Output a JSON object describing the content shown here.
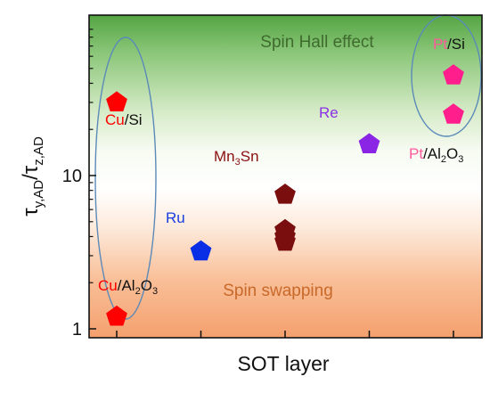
{
  "chart_data": {
    "type": "scatter",
    "title": "",
    "xlabel": "SOT layer",
    "ylabel": {
      "base": "τ",
      "sub1": "y,AD",
      "slash": "/τ",
      "sub2": "z,AD"
    },
    "yscale": "log",
    "ylim": [
      0.9,
      100
    ],
    "grid": false,
    "x_categories": [
      "Cu",
      "Ru",
      "Mn3Sn",
      "Re",
      "Pt"
    ],
    "y_ticks": [
      {
        "value": 1,
        "label": "1"
      },
      {
        "value": 10,
        "label": "10"
      }
    ],
    "regions": [
      {
        "label": "Spin Hall effect",
        "color": "#4a9a3a",
        "text_color": "#3f6b2e"
      },
      {
        "label": "Spin swapping",
        "color": "#f08a50",
        "text_color": "#c8692a"
      }
    ],
    "series": [
      {
        "category": "Cu",
        "color": "#ff0000",
        "points": [
          {
            "x": 0,
            "y": 30,
            "label": "Cu/Si"
          },
          {
            "x": 0,
            "y": 1.2,
            "label": "Cu/Al2O3"
          }
        ]
      },
      {
        "category": "Ru",
        "color": "#0a2ee6",
        "points": [
          {
            "x": 1,
            "y": 3.2
          }
        ]
      },
      {
        "category": "Mn3Sn",
        "color": "#7a0e0e",
        "points": [
          {
            "x": 2,
            "y": 7.5
          },
          {
            "x": 2,
            "y": 4.4
          },
          {
            "x": 2,
            "y": 4.0
          },
          {
            "x": 2,
            "y": 3.7
          }
        ]
      },
      {
        "category": "Re",
        "color": "#8a25e6",
        "points": [
          {
            "x": 3,
            "y": 16
          }
        ]
      },
      {
        "category": "Pt",
        "color": "#ff1e8c",
        "points": [
          {
            "x": 4,
            "y": 45
          },
          {
            "x": 4,
            "y": 25
          }
        ]
      }
    ],
    "point_labels": {
      "cu_si": {
        "el": "Cu",
        "rest": "/Si"
      },
      "cu_al2o3": {
        "el": "Cu",
        "rest": "/Al",
        "s1": "2",
        "mid": "O",
        "s2": "3"
      },
      "pt_si": {
        "el": "Pt",
        "rest": "/Si"
      },
      "pt_al2o3": {
        "el": "Pt",
        "rest": "/Al",
        "s1": "2",
        "mid": "O",
        "s2": "3"
      },
      "ru": "Ru",
      "re": "Re",
      "mn3sn": {
        "a": "Mn",
        "s": "3",
        "b": "Sn"
      }
    },
    "label_colors": {
      "cu_el": "#ff0000",
      "pt_el": "#ff5a9c",
      "rest": "#111111",
      "ru": "#1a3ee0",
      "re": "#8a30e6",
      "mn3sn": "#8a1010"
    },
    "ellipse_color": "#5b8ab8"
  }
}
